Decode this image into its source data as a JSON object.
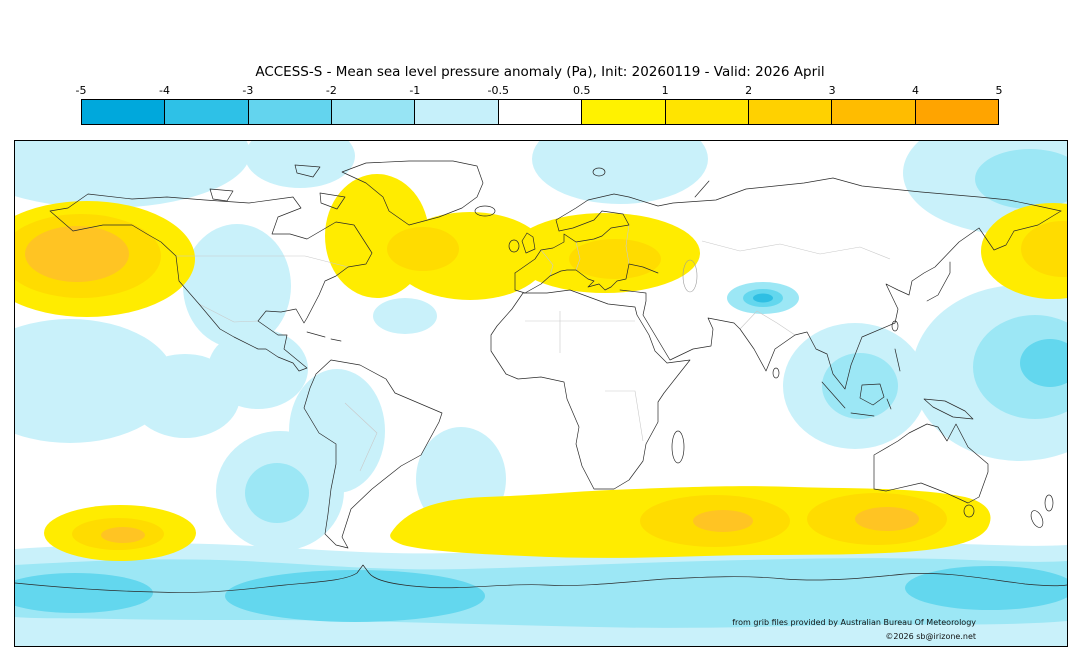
{
  "header": {
    "title": "ACCESS-S - Mean sea level pressure anomaly (Pa), Init: 20260119 - Valid: 2026 April"
  },
  "colorbar": {
    "ticks": [
      "-5",
      "-4",
      "-3",
      "-2",
      "-1",
      "-0.5",
      "0.5",
      "1",
      "2",
      "3",
      "4",
      "5"
    ],
    "segments": [
      {
        "range": "-5 to -4",
        "color": "#00A8DC"
      },
      {
        "range": "-4 to -3",
        "color": "#2EC1E7"
      },
      {
        "range": "-3 to -2",
        "color": "#63D4EE"
      },
      {
        "range": "-2 to -1",
        "color": "#97E4F4"
      },
      {
        "range": "-1 to -0.5",
        "color": "#C6F0FA"
      },
      {
        "range": "-0.5 to 0.5",
        "color": "#FFFFFF"
      },
      {
        "range": "0.5 to 1",
        "color": "#FFF200"
      },
      {
        "range": "1 to 2",
        "color": "#FFE400"
      },
      {
        "range": "2 to 3",
        "color": "#FFD100"
      },
      {
        "range": "3 to 4",
        "color": "#FFBC00"
      },
      {
        "range": "4 to 5",
        "color": "#FFA400"
      }
    ]
  },
  "palette": {
    "cyan_pale": "#C9F1FA",
    "cyan_light": "#9CE7F5",
    "cyan_mid": "#63D7EE",
    "cyan_deep": "#2FBFE3",
    "yellow": "#FFEC00",
    "yellow_deep": "#FFDC00",
    "amber": "#FFC423",
    "orange": "#FFAD0A"
  },
  "credits": {
    "source": "from grib files provided by Australian Bureau Of Meteorology",
    "copyright": "©2026 sb@irizone.net"
  },
  "chart_data": {
    "type": "heatmap",
    "subtype": "filled-contour world map",
    "title": "ACCESS-S - Mean sea level pressure anomaly (Pa), Init: 20260119 - Valid: 2026 April",
    "model": "ACCESS-S",
    "variable": "Mean sea level pressure anomaly (Pa)",
    "init_date": "20260119",
    "valid": "2026 April",
    "projection": "equirectangular",
    "lon_range": [
      -180,
      180
    ],
    "lat_range": [
      -90,
      90
    ],
    "levels": [
      -5,
      -4,
      -3,
      -2,
      -1,
      -0.5,
      0.5,
      1,
      2,
      3,
      4,
      5
    ],
    "level_colors": [
      "#00A8DC",
      "#2EC1E7",
      "#63D4EE",
      "#97E4F4",
      "#C6F0FA",
      "#FFFFFF",
      "#FFF200",
      "#FFE400",
      "#FFD100",
      "#FFBC00",
      "#FFA400"
    ],
    "legend_position": "top",
    "grid": false,
    "anomaly_regions": [
      {
        "region": "North Pacific / Gulf of Alaska",
        "approx_center": [
          -155,
          50
        ],
        "sign": "positive",
        "peak_value": 3.5
      },
      {
        "region": "Northwest Pacific (wrap at dateline)",
        "approx_center": [
          175,
          51
        ],
        "sign": "positive",
        "peak_value": 2
      },
      {
        "region": "Eastern Canada / Hudson Bay",
        "approx_center": [
          -56,
          56
        ],
        "sign": "positive",
        "peak_value": 1.5
      },
      {
        "region": "North Atlantic",
        "approx_center": [
          -24,
          49
        ],
        "sign": "positive",
        "peak_value": 2
      },
      {
        "region": "Europe",
        "approx_center": [
          22,
          50
        ],
        "sign": "positive",
        "peak_value": 2
      },
      {
        "region": "Southern Ocean band 40-60S (Atlantic to Pacific)",
        "approx_center": [
          50,
          -45
        ],
        "sign": "positive",
        "peak_value": 2.5
      },
      {
        "region": "Southeast Pacific (~50S 145W)",
        "approx_center": [
          -144,
          -50
        ],
        "sign": "positive",
        "peak_value": 2.5
      },
      {
        "region": "Antarctic circumpolar coast",
        "approx_center": [
          0,
          -70
        ],
        "sign": "negative",
        "peak_value": -3
      },
      {
        "region": "Afghanistan / Hindu Kush",
        "approx_center": [
          76,
          34
        ],
        "sign": "negative",
        "peak_value": -4
      },
      {
        "region": "Western tropical Pacific (right edge)",
        "approx_center": [
          165,
          10
        ],
        "sign": "negative",
        "peak_value": -2
      },
      {
        "region": "Indian Ocean",
        "approx_center": [
          107,
          3
        ],
        "sign": "negative",
        "peak_value": -1.5
      },
      {
        "region": "Western North America",
        "approx_center": [
          -105,
          38
        ],
        "sign": "negative",
        "peak_value": -1
      },
      {
        "region": "Eastern tropical Pacific",
        "approx_center": [
          -165,
          5
        ],
        "sign": "negative",
        "peak_value": -1
      },
      {
        "region": "Tropical Atlantic",
        "approx_center": [
          -70,
          -12
        ],
        "sign": "negative",
        "peak_value": -1
      },
      {
        "region": "South Pacific (~35S 90W)",
        "approx_center": [
          -90,
          -35
        ],
        "sign": "negative",
        "peak_value": -1.5
      },
      {
        "region": "Arctic patches (Alaska, Baffin, Barents, East Siberia)",
        "approx_center": [
          0,
          85
        ],
        "sign": "negative",
        "peak_value": -1.5
      }
    ]
  }
}
